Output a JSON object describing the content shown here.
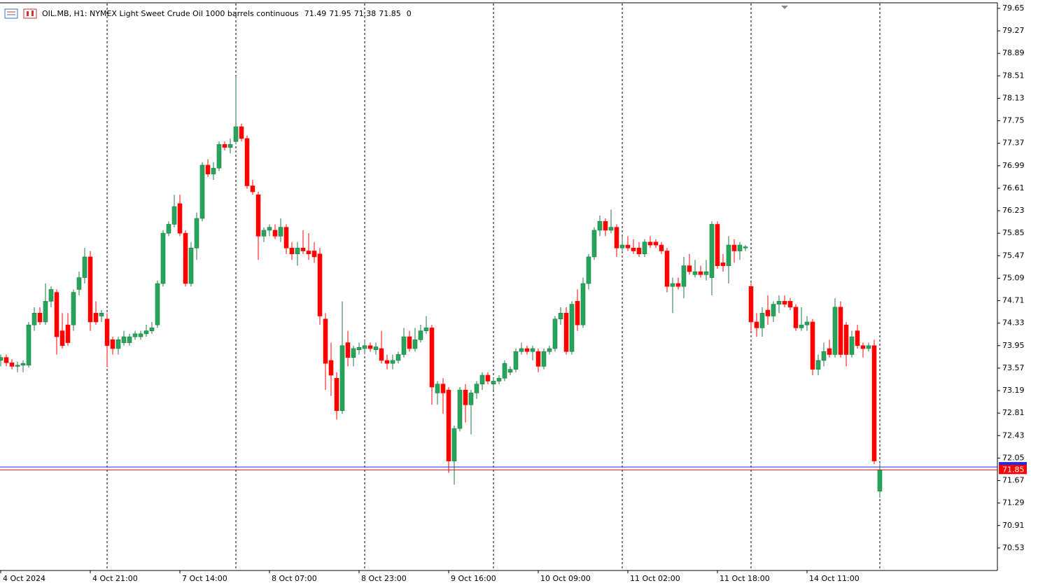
{
  "chart_data": {
    "type": "candlestick",
    "symbol": "OIL.MB, H1:  NYMEX Light Sweet Crude Oil 1000 barrels continuous",
    "volume": 0,
    "bull_color": "#26a65b",
    "bear_color": "#ff0000",
    "last_price": {
      "value": 71.85,
      "label": "71.85"
    },
    "ask": 71.9,
    "ylim": [
      70.15,
      79.72
    ],
    "yticks": [
      79.65,
      79.27,
      78.89,
      78.51,
      78.13,
      77.75,
      77.37,
      76.99,
      76.61,
      76.23,
      75.85,
      75.47,
      75.09,
      74.71,
      74.33,
      73.95,
      73.57,
      73.19,
      72.81,
      72.43,
      72.05,
      71.67,
      71.29,
      70.91,
      70.53
    ],
    "categories": [
      "4 Oct 2024",
      null,
      null,
      null,
      null,
      null,
      null,
      null,
      null,
      null,
      null,
      null,
      null,
      null,
      null,
      null,
      "4 Oct 21:00",
      null,
      null,
      null,
      null,
      null,
      null,
      null,
      null,
      null,
      null,
      null,
      null,
      null,
      null,
      null,
      "7 Oct 14:00",
      null,
      null,
      null,
      null,
      null,
      null,
      null,
      null,
      null,
      null,
      null,
      null,
      null,
      null,
      null,
      "8 Oct 07:00",
      null,
      null,
      null,
      null,
      null,
      null,
      null,
      null,
      null,
      null,
      null,
      null,
      null,
      null,
      null,
      "8 Oct 23:00",
      null,
      null,
      null,
      null,
      null,
      null,
      null,
      null,
      null,
      null,
      null,
      null,
      null,
      null,
      null,
      "9 Oct 16:00",
      null,
      null,
      null,
      null,
      null,
      null,
      null,
      null,
      null,
      null,
      null,
      null,
      null,
      null,
      null,
      "10 Oct 09:00",
      null,
      null,
      null,
      null,
      null,
      null,
      null,
      null,
      null,
      null,
      null,
      null,
      null,
      null,
      null,
      "11 Oct 02:00",
      null,
      null,
      null,
      null,
      null,
      null,
      null,
      null,
      null,
      null,
      null,
      null,
      null,
      null,
      null,
      "11 Oct 18:00",
      null,
      null,
      null,
      null,
      null,
      null,
      null,
      null,
      null,
      null,
      null,
      null,
      null,
      null,
      null,
      "14 Oct 11:00",
      null,
      null,
      null,
      null,
      null,
      null,
      null,
      null,
      null,
      null,
      null,
      null,
      null
    ],
    "candles": [
      [
        73.7,
        73.8,
        73.6,
        73.75
      ],
      [
        73.75,
        73.8,
        73.6,
        73.66
      ],
      [
        73.66,
        73.72,
        73.55,
        73.6
      ],
      [
        73.6,
        73.68,
        73.5,
        73.62
      ],
      [
        73.62,
        73.7,
        73.5,
        73.65
      ],
      [
        73.62,
        74.35,
        73.58,
        74.3
      ],
      [
        74.3,
        74.6,
        74.2,
        74.5
      ],
      [
        74.5,
        74.6,
        74.3,
        74.35
      ],
      [
        74.35,
        75.0,
        74.3,
        74.7
      ],
      [
        74.7,
        74.95,
        74.6,
        74.9
      ],
      [
        74.85,
        74.9,
        73.8,
        74.1
      ],
      [
        74.2,
        74.5,
        73.9,
        73.95
      ],
      [
        74.3,
        74.5,
        73.95,
        74.0
      ],
      [
        74.3,
        74.9,
        74.2,
        74.85
      ],
      [
        74.9,
        75.2,
        74.8,
        75.1
      ],
      [
        75.1,
        75.6,
        75.0,
        75.45
      ],
      [
        75.45,
        75.55,
        74.2,
        74.35
      ],
      [
        74.5,
        74.7,
        74.3,
        74.35
      ],
      [
        74.45,
        74.55,
        74.35,
        74.5
      ],
      [
        74.4,
        74.5,
        73.6,
        73.95
      ],
      [
        74.05,
        74.1,
        73.8,
        73.9
      ],
      [
        73.9,
        74.1,
        73.8,
        74.05
      ],
      [
        74.0,
        74.2,
        73.95,
        74.1
      ],
      [
        74.0,
        74.15,
        73.95,
        74.1
      ],
      [
        74.1,
        74.2,
        74.05,
        74.15
      ],
      [
        74.1,
        74.2,
        74.05,
        74.15
      ],
      [
        74.15,
        74.3,
        74.1,
        74.2
      ],
      [
        74.2,
        74.35,
        74.15,
        74.25
      ],
      [
        74.3,
        75.05,
        74.25,
        75.0
      ],
      [
        75.0,
        75.9,
        74.95,
        75.85
      ],
      [
        75.85,
        76.05,
        75.8,
        76.0
      ],
      [
        76.0,
        76.5,
        75.95,
        76.3
      ],
      [
        76.35,
        76.5,
        75.8,
        75.85
      ],
      [
        75.85,
        75.9,
        74.95,
        75.0
      ],
      [
        75.0,
        75.7,
        74.95,
        75.6
      ],
      [
        75.6,
        76.2,
        75.4,
        76.1
      ],
      [
        76.1,
        77.05,
        76.05,
        77.0
      ],
      [
        77.0,
        77.1,
        76.8,
        76.85
      ],
      [
        76.85,
        77.05,
        76.75,
        76.95
      ],
      [
        76.95,
        77.4,
        76.9,
        77.35
      ],
      [
        77.35,
        77.4,
        77.25,
        77.3
      ],
      [
        77.3,
        77.45,
        77.2,
        77.35
      ],
      [
        77.4,
        78.5,
        77.35,
        77.65
      ],
      [
        77.65,
        77.7,
        77.4,
        77.45
      ],
      [
        77.45,
        77.5,
        76.6,
        76.65
      ],
      [
        76.65,
        76.75,
        76.5,
        76.55
      ],
      [
        76.5,
        76.55,
        75.4,
        75.8
      ],
      [
        75.8,
        75.95,
        75.7,
        75.9
      ],
      [
        75.9,
        76.0,
        75.8,
        75.95
      ],
      [
        75.9,
        76.0,
        75.75,
        75.8
      ],
      [
        75.8,
        76.1,
        75.7,
        75.95
      ],
      [
        75.95,
        76.0,
        75.5,
        75.6
      ],
      [
        75.6,
        75.7,
        75.4,
        75.5
      ],
      [
        75.5,
        75.7,
        75.3,
        75.6
      ],
      [
        75.6,
        75.9,
        75.5,
        75.55
      ],
      [
        75.55,
        75.85,
        75.4,
        75.5
      ],
      [
        75.55,
        75.7,
        75.35,
        75.45
      ],
      [
        75.5,
        75.6,
        74.3,
        74.45
      ],
      [
        74.4,
        74.5,
        73.2,
        73.65
      ],
      [
        73.7,
        74.0,
        73.1,
        73.45
      ],
      [
        73.4,
        73.5,
        72.7,
        72.85
      ],
      [
        72.85,
        74.7,
        72.8,
        73.95
      ],
      [
        74.0,
        74.2,
        73.6,
        73.75
      ],
      [
        73.75,
        73.95,
        73.6,
        73.9
      ],
      [
        73.88,
        74.0,
        73.8,
        73.92
      ],
      [
        73.9,
        74.05,
        73.8,
        73.95
      ],
      [
        73.95,
        74.0,
        73.85,
        73.9
      ],
      [
        73.88,
        74.0,
        73.8,
        73.93
      ],
      [
        73.9,
        74.2,
        73.65,
        73.7
      ],
      [
        73.7,
        73.8,
        73.55,
        73.65
      ],
      [
        73.65,
        73.8,
        73.55,
        73.7
      ],
      [
        73.7,
        73.85,
        73.65,
        73.8
      ],
      [
        73.8,
        74.25,
        73.75,
        74.1
      ],
      [
        74.1,
        74.2,
        73.85,
        73.9
      ],
      [
        73.9,
        74.25,
        73.85,
        74.05
      ],
      [
        74.05,
        74.3,
        74.0,
        74.2
      ],
      [
        74.2,
        74.45,
        74.15,
        74.25
      ],
      [
        74.25,
        74.3,
        72.95,
        73.25
      ],
      [
        73.15,
        73.35,
        72.95,
        73.3
      ],
      [
        73.3,
        73.4,
        72.8,
        73.15
      ],
      [
        73.2,
        73.25,
        71.8,
        72.0
      ],
      [
        72.0,
        72.6,
        71.6,
        72.55
      ],
      [
        72.55,
        73.25,
        72.5,
        73.2
      ],
      [
        73.2,
        73.3,
        72.65,
        72.95
      ],
      [
        72.95,
        73.2,
        72.45,
        73.15
      ],
      [
        73.15,
        73.35,
        73.05,
        73.3
      ],
      [
        73.3,
        73.5,
        73.2,
        73.45
      ],
      [
        73.45,
        73.5,
        73.3,
        73.35
      ],
      [
        73.3,
        73.4,
        73.2,
        73.35
      ],
      [
        73.35,
        73.45,
        73.3,
        73.4
      ],
      [
        73.4,
        73.7,
        73.35,
        73.65
      ],
      [
        73.5,
        73.6,
        73.45,
        73.55
      ],
      [
        73.55,
        73.9,
        73.5,
        73.85
      ],
      [
        73.85,
        74.0,
        73.8,
        73.9
      ],
      [
        73.9,
        73.95,
        73.8,
        73.85
      ],
      [
        73.85,
        73.95,
        73.7,
        73.9
      ],
      [
        73.85,
        73.9,
        73.5,
        73.6
      ],
      [
        73.6,
        73.9,
        73.55,
        73.85
      ],
      [
        73.85,
        73.95,
        73.8,
        73.9
      ],
      [
        73.9,
        74.45,
        73.85,
        74.4
      ],
      [
        74.4,
        74.6,
        74.3,
        74.5
      ],
      [
        74.5,
        74.6,
        73.8,
        73.85
      ],
      [
        73.85,
        74.7,
        73.8,
        74.65
      ],
      [
        74.7,
        74.9,
        74.2,
        74.3
      ],
      [
        74.3,
        75.1,
        74.25,
        75.0
      ],
      [
        75.0,
        75.5,
        74.9,
        75.45
      ],
      [
        75.45,
        75.95,
        75.4,
        75.9
      ],
      [
        75.9,
        76.15,
        75.8,
        76.05
      ],
      [
        76.05,
        76.1,
        75.8,
        75.9
      ],
      [
        75.9,
        76.25,
        75.85,
        75.95
      ],
      [
        75.95,
        76.0,
        75.45,
        75.6
      ],
      [
        75.6,
        75.8,
        75.55,
        75.65
      ],
      [
        75.65,
        75.8,
        75.55,
        75.6
      ],
      [
        75.6,
        75.75,
        75.5,
        75.55
      ],
      [
        75.6,
        75.7,
        75.45,
        75.5
      ],
      [
        75.5,
        75.75,
        75.45,
        75.7
      ],
      [
        75.7,
        75.8,
        75.6,
        75.65
      ],
      [
        75.7,
        75.75,
        75.6,
        75.65
      ],
      [
        75.65,
        75.7,
        75.5,
        75.55
      ],
      [
        75.55,
        75.6,
        74.85,
        74.95
      ],
      [
        74.95,
        75.1,
        74.5,
        75.0
      ],
      [
        75.0,
        75.1,
        74.9,
        74.95
      ],
      [
        74.95,
        75.45,
        74.75,
        75.3
      ],
      [
        75.3,
        75.5,
        75.15,
        75.2
      ],
      [
        75.15,
        75.4,
        75.1,
        75.2
      ],
      [
        75.2,
        75.3,
        75.1,
        75.15
      ],
      [
        75.15,
        75.4,
        75.05,
        75.2
      ],
      [
        75.1,
        76.05,
        74.8,
        76.0
      ],
      [
        76.0,
        76.05,
        75.25,
        75.3
      ],
      [
        75.35,
        75.5,
        75.2,
        75.3
      ],
      [
        75.3,
        75.8,
        75.0,
        75.65
      ],
      [
        75.65,
        75.75,
        75.35,
        75.55
      ],
      [
        75.55,
        75.7,
        75.4,
        75.65
      ],
      [
        75.6,
        75.65,
        75.55,
        75.62
      ],
      [
        74.95,
        75.0,
        74.2,
        74.35
      ],
      [
        74.35,
        74.5,
        74.1,
        74.25
      ],
      [
        74.25,
        74.6,
        74.1,
        74.5
      ],
      [
        74.55,
        74.8,
        74.3,
        74.45
      ],
      [
        74.45,
        74.7,
        74.35,
        74.65
      ],
      [
        74.65,
        74.8,
        74.5,
        74.7
      ],
      [
        74.7,
        74.8,
        74.6,
        74.65
      ],
      [
        74.7,
        74.75,
        74.55,
        74.6
      ],
      [
        74.6,
        74.65,
        74.2,
        74.25
      ],
      [
        74.25,
        74.6,
        74.2,
        74.3
      ],
      [
        74.3,
        74.45,
        74.2,
        74.35
      ],
      [
        74.35,
        74.4,
        73.45,
        73.55
      ],
      [
        73.55,
        73.8,
        73.45,
        73.7
      ],
      [
        73.7,
        74.0,
        73.6,
        73.85
      ],
      [
        73.9,
        74.05,
        73.75,
        73.8
      ],
      [
        73.8,
        74.75,
        73.75,
        74.6
      ],
      [
        74.6,
        74.7,
        73.75,
        73.8
      ],
      [
        74.3,
        74.35,
        73.6,
        73.8
      ],
      [
        73.8,
        74.2,
        73.75,
        74.1
      ],
      [
        74.2,
        74.3,
        73.9,
        73.95
      ],
      [
        73.95,
        74.0,
        73.75,
        73.9
      ],
      [
        73.9,
        74.0,
        73.85,
        73.95
      ],
      [
        73.95,
        74.05,
        71.95,
        72.0
      ],
      [
        71.49,
        71.95,
        71.38,
        71.85
      ]
    ]
  }
}
